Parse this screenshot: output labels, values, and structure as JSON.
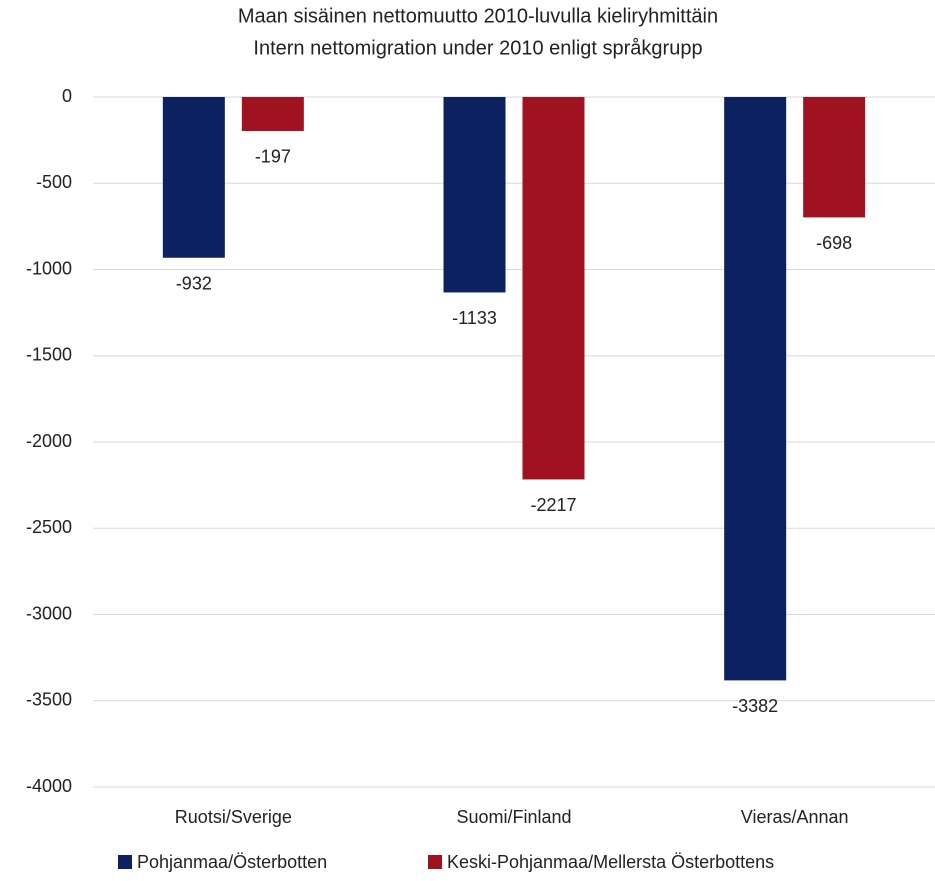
{
  "chart_data": {
    "type": "bar",
    "title": "Maan sisäinen nettomuutto 2010-luvulla kieliryhmittäin",
    "subtitle": "Intern nettomigration under 2010 enligt språkgrupp",
    "categories": [
      "Ruotsi/Sverige",
      "Suomi/Finland",
      "Vieras/Annan"
    ],
    "series": [
      {
        "name": "Pohjanmaa/Österbotten",
        "color": "#0b2160",
        "values": [
          -932,
          -1133,
          -3382
        ]
      },
      {
        "name": "Keski-Pohjanmaa/Mellersta Österbottens",
        "color": "#a0121f",
        "values": [
          -197,
          -2217,
          -698
        ]
      }
    ],
    "ylim": [
      -4000,
      0
    ],
    "yticks": [
      0,
      -500,
      -1000,
      -1500,
      -2000,
      -2500,
      -3000,
      -3500,
      -4000
    ],
    "grid": true,
    "legend": "bottom"
  }
}
